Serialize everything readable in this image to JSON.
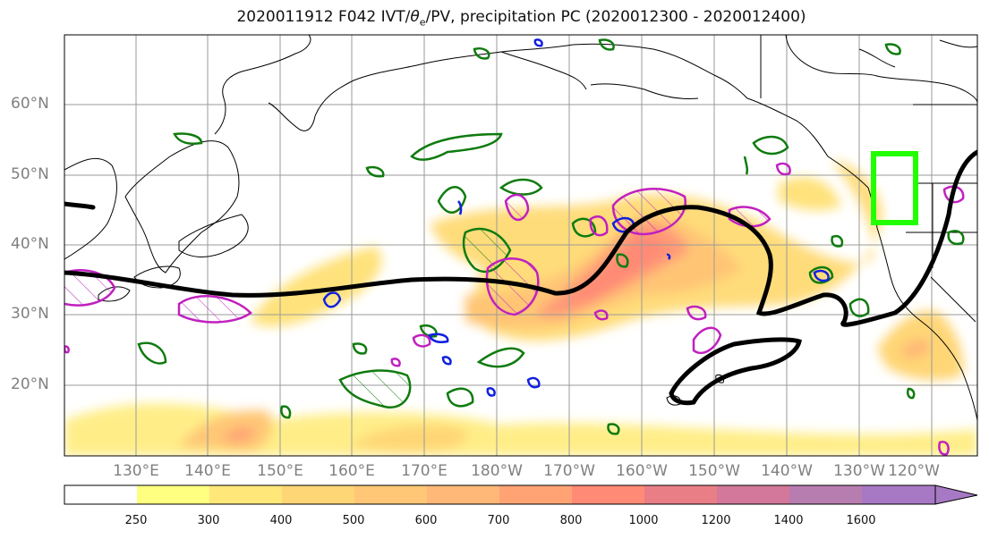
{
  "title": {
    "prefix": "2020011912 F042 IVT/",
    "theta": "θ",
    "sub": "e",
    "suffix": "/PV, precipitation PC (2020012300 - 2020012400)"
  },
  "lat_labels": [
    "60°N",
    "50°N",
    "40°N",
    "30°N",
    "20°N"
  ],
  "lon_labels": [
    "130°E",
    "140°E",
    "150°E",
    "160°E",
    "170°E",
    "180°W",
    "170°W",
    "160°W",
    "150°W",
    "140°W",
    "130°W",
    "120°W"
  ],
  "colorbar": {
    "ticks": [
      "250",
      "300",
      "400",
      "500",
      "600",
      "700",
      "800",
      "1000",
      "1200",
      "1400",
      "1600"
    ],
    "colors": [
      "#ffffff",
      "#ffff80",
      "#ffe77a",
      "#ffd676",
      "#ffc776",
      "#ffb877",
      "#ffa375",
      "#ff8a75",
      "#e97e86",
      "#d3789a",
      "#b87db0",
      "#a779c5"
    ]
  },
  "contour_colors": {
    "pv_line": "#000000",
    "precip_green": "#0f7b0f",
    "magenta": "#c020c0",
    "blue": "#1020e0",
    "target_box": "#22ff00"
  }
}
